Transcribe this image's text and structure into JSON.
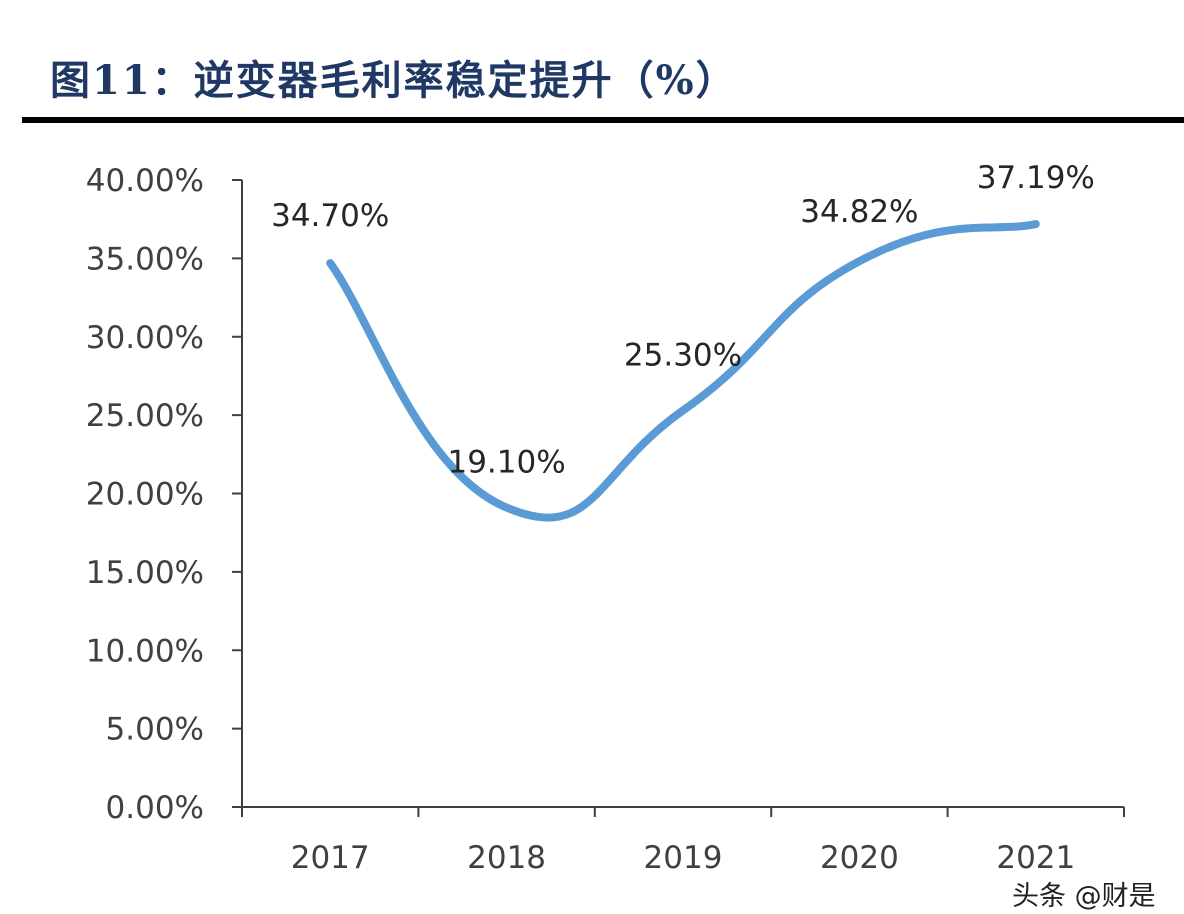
{
  "title": "图11：逆变器毛利率稳定提升（%）",
  "watermark": "头条 @财是",
  "chart_data": {
    "type": "line",
    "title": "图11：逆变器毛利率稳定提升（%）",
    "categories": [
      "2017",
      "2018",
      "2019",
      "2020",
      "2021"
    ],
    "values": [
      34.7,
      19.1,
      25.3,
      34.82,
      37.19
    ],
    "data_labels": [
      "34.70%",
      "19.10%",
      "25.30%",
      "34.82%",
      "37.19%"
    ],
    "yticks": [
      "0.00%",
      "5.00%",
      "10.00%",
      "15.00%",
      "20.00%",
      "25.00%",
      "30.00%",
      "35.00%",
      "40.00%"
    ],
    "ylim": [
      0,
      40
    ],
    "smooth": true,
    "grid": false,
    "legend": "none",
    "line_color": "#5b9bd5"
  }
}
